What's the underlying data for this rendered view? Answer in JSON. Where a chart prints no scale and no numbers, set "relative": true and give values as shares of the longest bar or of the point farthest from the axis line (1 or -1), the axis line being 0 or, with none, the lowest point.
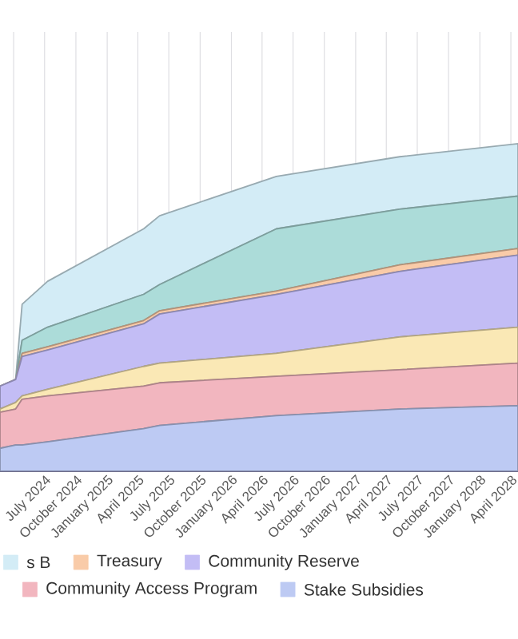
{
  "chart_data": {
    "type": "area",
    "stacked": true,
    "relative": true,
    "grid": true,
    "legend": "bottom",
    "x": [
      "2024-02-21",
      "2024-04-07",
      "2024-04-26",
      "2024-07-10",
      "2025-04-18",
      "2025-06-04",
      "2026-05-13",
      "2027-05-10",
      "2028-04-22"
    ],
    "xlim": [
      "2024-02-21",
      "2028-04-22"
    ],
    "xticks": [
      {
        "value": "2024-04-01",
        "label": null
      },
      {
        "value": "2024-07-01",
        "label": "July 2024"
      },
      {
        "value": "2024-10-01",
        "label": "October 2024"
      },
      {
        "value": "2025-01-01",
        "label": "January 2025"
      },
      {
        "value": "2025-04-01",
        "label": "April 2025"
      },
      {
        "value": "2025-07-01",
        "label": "July 2025"
      },
      {
        "value": "2025-10-01",
        "label": "October 2025"
      },
      {
        "value": "2026-01-01",
        "label": "January 2026"
      },
      {
        "value": "2026-04-01",
        "label": "April 2026"
      },
      {
        "value": "2026-07-01",
        "label": "July 2026"
      },
      {
        "value": "2026-10-01",
        "label": "October 2026"
      },
      {
        "value": "2027-01-01",
        "label": "January 2027"
      },
      {
        "value": "2027-04-01",
        "label": "April 2027"
      },
      {
        "value": "2027-07-01",
        "label": "July 2027"
      },
      {
        "value": "2027-10-01",
        "label": "October 2027"
      },
      {
        "value": "2028-01-01",
        "label": "January 2028"
      },
      {
        "value": "2028-04-01",
        "label": "April 2028"
      }
    ],
    "series": [
      {
        "name": "Stake Subsidies",
        "color": "#bdcaf3",
        "values": [
          0.07,
          0.08,
          0.08,
          0.09,
          0.13,
          0.14,
          0.17,
          0.19,
          0.2
        ]
      },
      {
        "name": "Community Access Program",
        "color": "#f2b6bf",
        "values": [
          0.11,
          0.11,
          0.14,
          0.14,
          0.13,
          0.13,
          0.12,
          0.12,
          0.13
        ]
      },
      {
        "color": "#fae8b5",
        "values": [
          0.01,
          0.02,
          0.01,
          0.02,
          0.06,
          0.06,
          0.07,
          0.1,
          0.11
        ]
      },
      {
        "name": "Community Reserve",
        "color": "#c3bdf5",
        "values": [
          0.07,
          0.07,
          0.12,
          0.12,
          0.13,
          0.15,
          0.18,
          0.2,
          0.22
        ]
      },
      {
        "name": "Treasury",
        "color": "#f9cba8",
        "values": [
          0,
          0,
          0.01,
          0.01,
          0.01,
          0.01,
          0.01,
          0.02,
          0.02
        ]
      },
      {
        "color": "#acdcd9",
        "values": [
          0,
          0,
          0.04,
          0.06,
          0.08,
          0.08,
          0.19,
          0.17,
          0.16
        ]
      },
      {
        "name": "s B",
        "color": "#d3ecf6",
        "values": [
          0,
          0,
          0.11,
          0.14,
          0.2,
          0.21,
          0.16,
          0.16,
          0.16
        ]
      }
    ]
  }
}
